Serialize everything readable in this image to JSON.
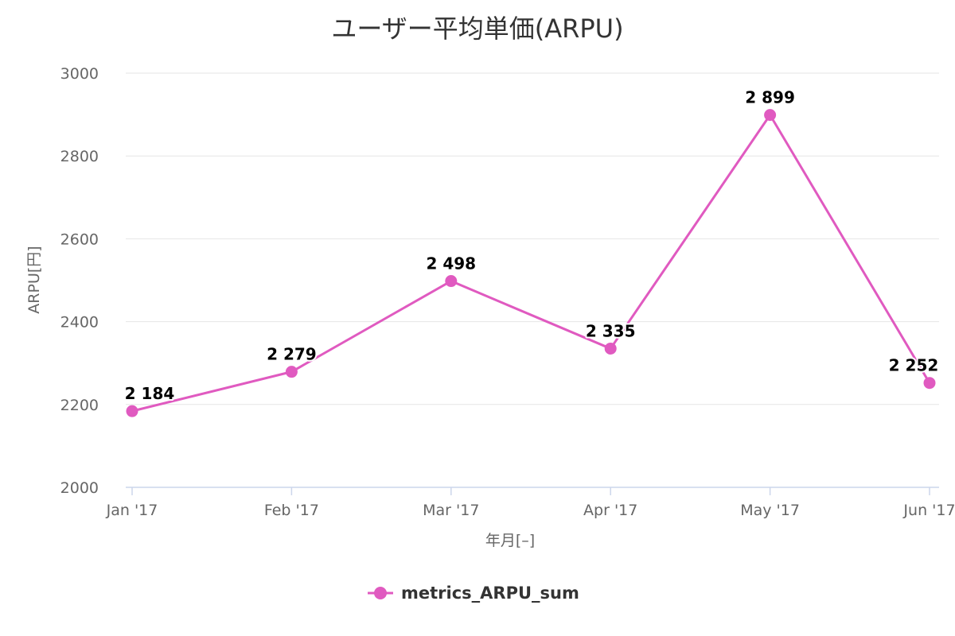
{
  "chart_data": {
    "type": "line",
    "title": "ユーザー平均単価(ARPU)",
    "xlabel": "年月[–]",
    "ylabel": "ARPU[円]",
    "categories": [
      "Jan '17",
      "Feb '17",
      "Mar '17",
      "Apr '17",
      "May '17",
      "Jun '17"
    ],
    "series": [
      {
        "name": "metrics_ARPU_sum",
        "values": [
          2184,
          2279,
          2498,
          2335,
          2899,
          2252
        ],
        "value_labels": [
          "2 184",
          "2 279",
          "2 498",
          "2 335",
          "2 899",
          "2 252"
        ],
        "color": "#e05ac0"
      }
    ],
    "ylim": [
      2000,
      3000
    ],
    "yticks": [
      "2000",
      "2200",
      "2400",
      "2600",
      "2800",
      "3000"
    ],
    "grid": true,
    "legend_position": "bottom-center"
  }
}
